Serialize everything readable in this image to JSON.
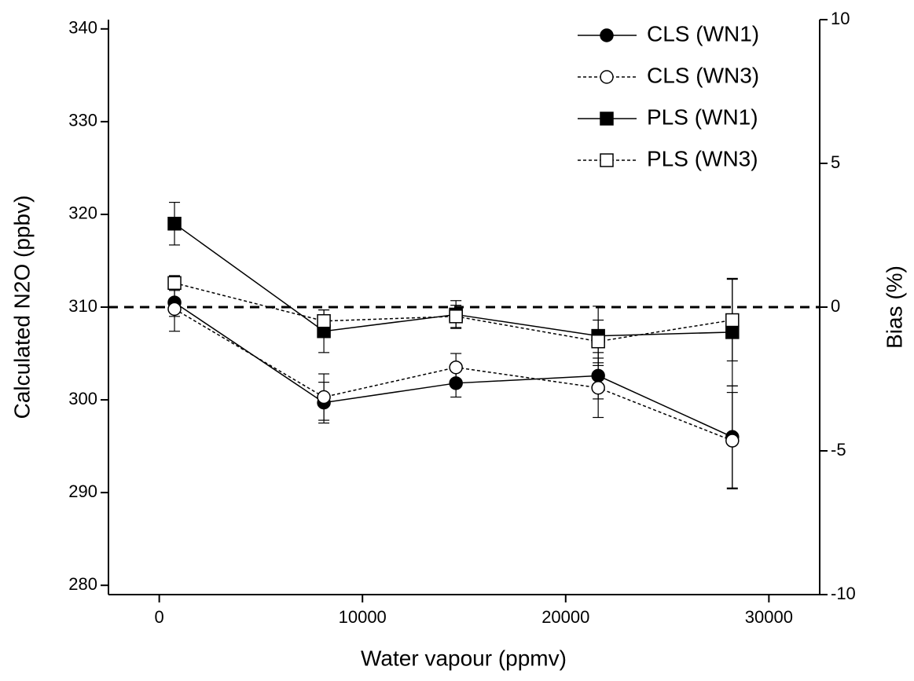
{
  "chart_data": {
    "type": "line",
    "x_label": "Water vapour (ppmv)",
    "y_label": "Calculated N2O (ppbv)",
    "y2_label": "Bias (%)",
    "x": [
      750,
      8100,
      14600,
      21600,
      28200
    ],
    "xlim": [
      -2500,
      32500
    ],
    "xticks": [
      0,
      10000,
      20000,
      30000
    ],
    "ylim": [
      279,
      341
    ],
    "yticks": [
      280,
      290,
      300,
      310,
      320,
      330,
      340
    ],
    "y2lim": [
      -10,
      10
    ],
    "y2ticks": [
      -10,
      -5,
      0,
      5,
      10
    ],
    "reference_line": 310,
    "legend": "top-right",
    "series": [
      {
        "name": "CLS (WN1)",
        "color": "#000000",
        "marker": "circle",
        "filled": true,
        "dashed": false,
        "values": [
          310.5,
          299.7,
          301.8,
          302.6,
          296.0
        ],
        "errors": [
          1.5,
          2.2,
          1.5,
          2.5,
          5.5
        ]
      },
      {
        "name": "CLS (WN3)",
        "color": "#000000",
        "marker": "circle",
        "filled": false,
        "dashed": true,
        "values": [
          309.8,
          300.3,
          303.5,
          301.3,
          295.6
        ],
        "errors": [
          2.4,
          2.5,
          1.5,
          3.2,
          5.2
        ]
      },
      {
        "name": "PLS (WN1)",
        "color": "#000000",
        "marker": "square",
        "filled": true,
        "dashed": false,
        "values": [
          319.0,
          307.4,
          309.2,
          306.9,
          307.3
        ],
        "errors": [
          2.3,
          2.3,
          1.5,
          3.2,
          5.8
        ]
      },
      {
        "name": "PLS (WN3)",
        "color": "#000000",
        "marker": "square",
        "filled": false,
        "dashed": true,
        "values": [
          312.6,
          308.5,
          309.0,
          306.3,
          308.6
        ],
        "errors": [
          0.8,
          1.2,
          1.2,
          2.3,
          4.4
        ]
      }
    ]
  }
}
